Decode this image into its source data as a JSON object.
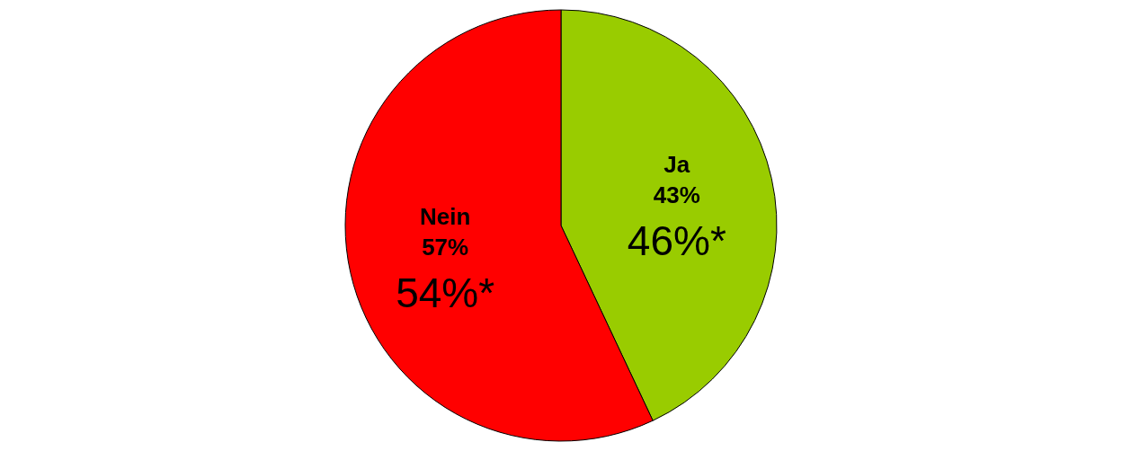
{
  "chart_data": {
    "type": "pie",
    "categories": [
      "Ja",
      "Nein"
    ],
    "values": [
      43,
      57
    ],
    "colors": [
      "#99cc00",
      "#ff0000"
    ],
    "value_labels": [
      "43%",
      "57%"
    ],
    "annotations": [
      "46%*",
      "54%*"
    ]
  }
}
